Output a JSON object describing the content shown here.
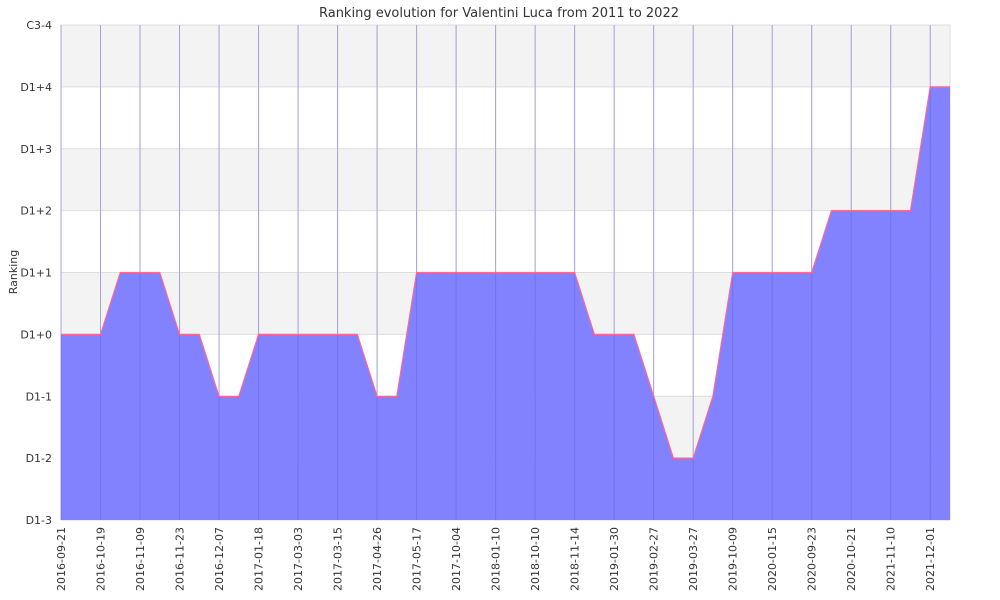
{
  "chart_data": {
    "type": "area",
    "title": "Ranking evolution for Valentini Luca from 2011 to 2022",
    "xlabel": "",
    "ylabel": "Ranking",
    "y_levels": [
      "D1-3",
      "D1-2",
      "D1-1",
      "D1+0",
      "D1+1",
      "D1+2",
      "D1+3",
      "D1+4",
      "C3-4"
    ],
    "x_tick_labels": [
      "2016-09-21",
      "2016-10-19",
      "2016-11-09",
      "2016-11-23",
      "2016-12-07",
      "2017-01-18",
      "2017-03-03",
      "2017-03-15",
      "2017-04-26",
      "2017-05-17",
      "2017-10-04",
      "2018-01-10",
      "2018-10-10",
      "2018-11-14",
      "2019-01-30",
      "2019-02-27",
      "2019-03-27",
      "2019-10-09",
      "2020-01-15",
      "2020-09-23",
      "2020-10-21",
      "2021-11-10",
      "2021-12-01"
    ],
    "x_tick_every": 2,
    "values": [
      "D1+0",
      "D1+0",
      "D1+0",
      "D1+1",
      "D1+1",
      "D1+1",
      "D1+0",
      "D1+0",
      "D1-1",
      "D1-1",
      "D1+0",
      "D1+0",
      "D1+0",
      "D1+0",
      "D1+0",
      "D1+0",
      "D1-1",
      "D1-1",
      "D1+1",
      "D1+1",
      "D1+1",
      "D1+1",
      "D1+1",
      "D1+1",
      "D1+1",
      "D1+1",
      "D1+1",
      "D1+0",
      "D1+0",
      "D1+0",
      "D1-1",
      "D1-2",
      "D1-2",
      "D1-1",
      "D1+1",
      "D1+1",
      "D1+1",
      "D1+1",
      "D1+1",
      "D1+2",
      "D1+2",
      "D1+2",
      "D1+2",
      "D1+2",
      "D1+4",
      "D1+4"
    ],
    "grid": true,
    "legend": "none",
    "colors": {
      "fill": "#7b7bff",
      "line": "#ff6699",
      "band": "#f3f3f3",
      "grid": "#cccccc"
    }
  }
}
